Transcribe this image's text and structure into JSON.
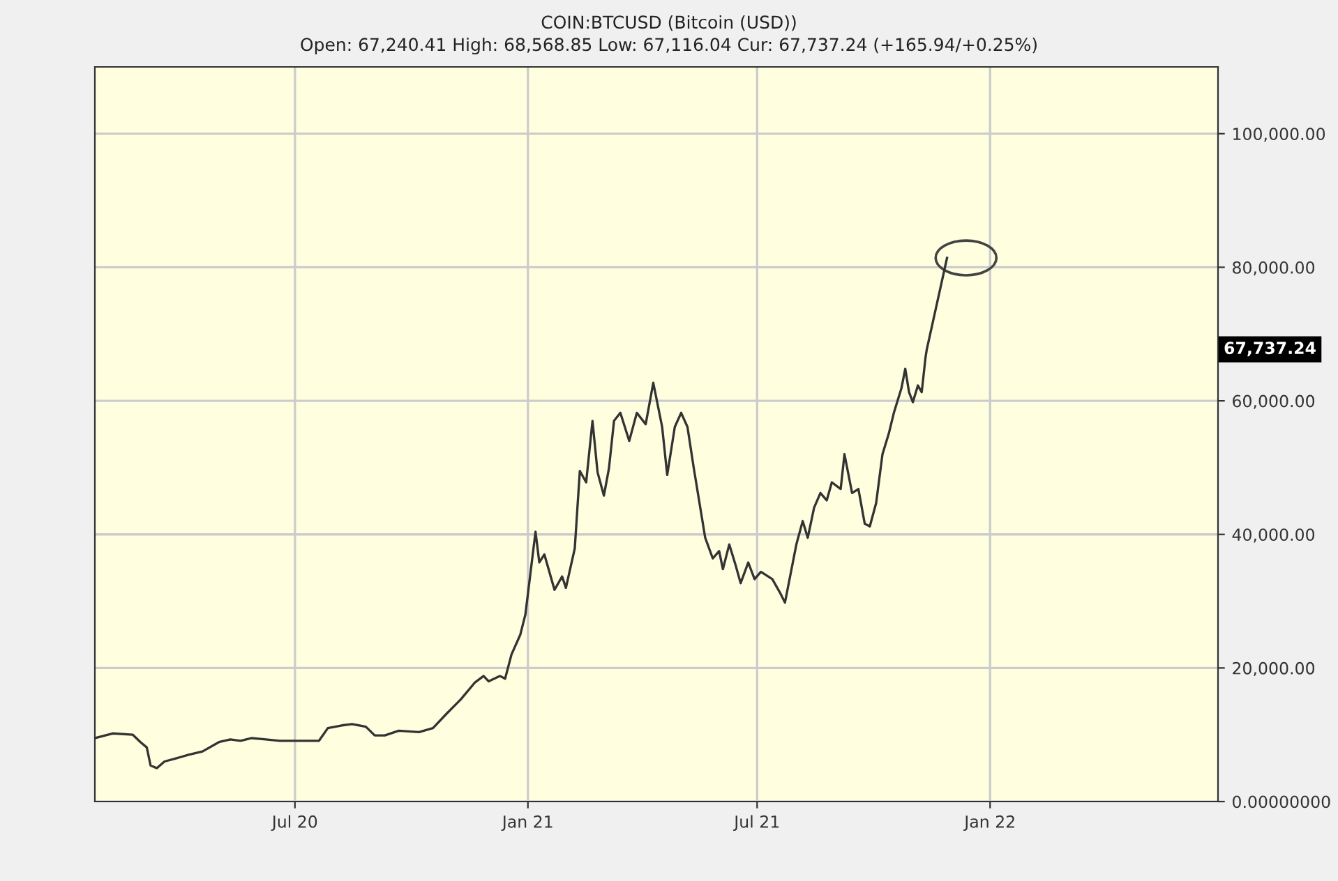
{
  "chart_data": {
    "type": "line",
    "title": "COIN:BTCUSD (Bitcoin (USD))",
    "subtitle": "Open: 67,240.41 High: 68,568.85 Low: 67,116.04 Cur: 67,737.24 (+165.94/+0.25%)",
    "series": [
      {
        "color": "#333333",
        "x": [
          "2020-01-25",
          "2020-02-08",
          "2020-02-24",
          "2020-03-01",
          "2020-03-06",
          "2020-03-09",
          "2020-03-14",
          "2020-03-20",
          "2020-03-28",
          "2020-04-08",
          "2020-04-19",
          "2020-05-02",
          "2020-05-11",
          "2020-05-19",
          "2020-05-28",
          "2020-06-08",
          "2020-06-19",
          "2020-07-05",
          "2020-07-20",
          "2020-07-27",
          "2020-08-07",
          "2020-08-15",
          "2020-08-26",
          "2020-09-02",
          "2020-09-10",
          "2020-09-21",
          "2020-10-07",
          "2020-10-18",
          "2020-10-29",
          "2020-11-09",
          "2020-11-20",
          "2020-11-27",
          "2020-12-01",
          "2020-12-10",
          "2020-12-14",
          "2020-12-19",
          "2020-12-26",
          "2020-12-30",
          "2021-01-07",
          "2021-01-10",
          "2021-01-14",
          "2021-01-22",
          "2021-01-28",
          "2021-01-31",
          "2021-02-07",
          "2021-02-11",
          "2021-02-16",
          "2021-02-21",
          "2021-02-25",
          "2021-03-02",
          "2021-03-06",
          "2021-03-10",
          "2021-03-15",
          "2021-03-22",
          "2021-03-28",
          "2021-04-04",
          "2021-04-10",
          "2021-04-17",
          "2021-04-21",
          "2021-04-27",
          "2021-05-02",
          "2021-05-07",
          "2021-05-12",
          "2021-05-21",
          "2021-05-27",
          "2021-06-01",
          "2021-06-04",
          "2021-06-09",
          "2021-06-14",
          "2021-06-18",
          "2021-06-24",
          "2021-06-29",
          "2021-07-04",
          "2021-07-13",
          "2021-07-19",
          "2021-07-23",
          "2021-08-01",
          "2021-08-06",
          "2021-08-10",
          "2021-08-15",
          "2021-08-20",
          "2021-08-25",
          "2021-08-29",
          "2021-09-05",
          "2021-09-08",
          "2021-09-14",
          "2021-09-19",
          "2021-09-24",
          "2021-09-28",
          "2021-10-03",
          "2021-10-08",
          "2021-10-13",
          "2021-10-17",
          "2021-10-23",
          "2021-10-26",
          "2021-10-29",
          "2021-11-01",
          "2021-11-05",
          "2021-11-08",
          "2021-11-11",
          "2021-11-12",
          "2021-11-28"
        ],
        "values": [
          9500,
          10200,
          10000,
          8900,
          8100,
          5400,
          5000,
          6000,
          6400,
          7000,
          7500,
          8900,
          9300,
          9100,
          9500,
          9300,
          9100,
          9100,
          9100,
          11000,
          11400,
          11600,
          11200,
          9900,
          9900,
          10600,
          10400,
          11000,
          13200,
          15300,
          17800,
          18800,
          18000,
          18800,
          18400,
          22000,
          25000,
          28000,
          40400,
          35800,
          37000,
          31700,
          33700,
          32000,
          37900,
          49500,
          47800,
          57000,
          49300,
          45800,
          49900,
          57000,
          58200,
          54000,
          58200,
          56500,
          62700,
          56100,
          48900,
          56100,
          58200,
          56100,
          49900,
          39500,
          36400,
          37500,
          34800,
          38500,
          35400,
          32700,
          35800,
          33300,
          34400,
          33300,
          31300,
          29800,
          38500,
          42000,
          39500,
          44000,
          46200,
          45100,
          47800,
          46800,
          52000,
          46200,
          46800,
          41600,
          41200,
          44700,
          52000,
          55100,
          58200,
          61900,
          64800,
          61300,
          59800,
          62300,
          61300,
          66500,
          67700,
          81400
        ]
      }
    ],
    "xlim": [
      "2020-01-25",
      "2022-06-30"
    ],
    "xticks": [
      {
        "value": "2020-07-01",
        "label": "Jul 20"
      },
      {
        "value": "2021-01-01",
        "label": "Jan 21"
      },
      {
        "value": "2021-07-01",
        "label": "Jul 21"
      },
      {
        "value": "2022-01-01",
        "label": "Jan 22"
      }
    ],
    "ylim": [
      0,
      110000
    ],
    "yticks": [
      {
        "value": 0,
        "label": "0.00000000"
      },
      {
        "value": 20000,
        "label": "20,000.00"
      },
      {
        "value": 40000,
        "label": "40,000.00"
      },
      {
        "value": 60000,
        "label": "60,000.00"
      },
      {
        "value": 80000,
        "label": "80,000.00"
      },
      {
        "value": 100000,
        "label": "100,000.00"
      }
    ],
    "annotations": [
      "67,737.24"
    ],
    "grid": true,
    "legend": false,
    "marker": "none",
    "line_style": "solid"
  }
}
